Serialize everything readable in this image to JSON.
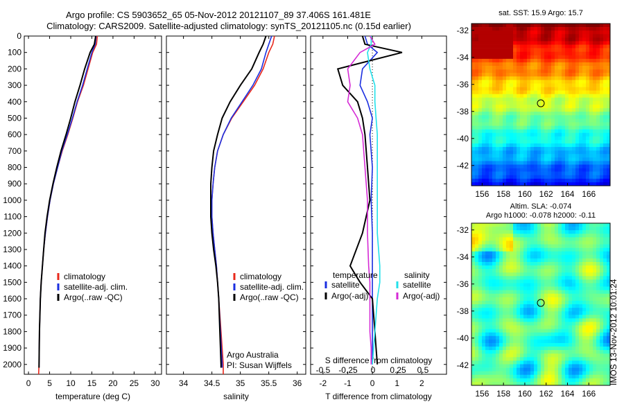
{
  "titles": {
    "line1": "Argo profile: CS 5903652_65 05-Nov-2012 20121107_89 37.406S 161.481E",
    "line2": "Climatology: CARS2009. Satellite-adjusted climatology: synTS_20121105.nc (0.15d earlier)"
  },
  "credits": {
    "org": "Argo Australia",
    "pi": "PI: Susan Wijffels"
  },
  "stamp": "IMOS 13-Nov-2012 10:01:24",
  "colors": {
    "climatology": "#e8271a",
    "satellite": "#1a2ee0",
    "argo": "#000000",
    "sat_salinity": "#22e0ea",
    "argo_salinity": "#d52ad5"
  },
  "chart_data": [
    {
      "type": "line",
      "xlabel": "temperature (deg C)",
      "ylabel": "",
      "xlim": [
        -1,
        31.5
      ],
      "ylim": [
        2060,
        0
      ],
      "xticks": [
        0,
        5,
        10,
        15,
        20,
        25,
        30
      ],
      "yticks": [
        0,
        100,
        200,
        300,
        400,
        500,
        600,
        700,
        800,
        900,
        1000,
        1100,
        1200,
        1300,
        1400,
        1500,
        1600,
        1700,
        1800,
        1900,
        2000
      ],
      "legend": [
        "climatology",
        "satellite-adj. clim.",
        "Argo(..raw -QC)"
      ],
      "series": [
        {
          "name": "climatology",
          "color": "#e8271a",
          "x": [
            16.3,
            16.1,
            15.2,
            14.1,
            13.0,
            11.6,
            10.5,
            9.3,
            8.0,
            6.9,
            5.9,
            5.1,
            4.5,
            4.0,
            3.6,
            3.3,
            3.0,
            2.8,
            2.6,
            2.5,
            2.4
          ],
          "y": [
            0,
            50,
            100,
            200,
            300,
            400,
            500,
            600,
            700,
            800,
            900,
            1000,
            1100,
            1200,
            1300,
            1400,
            1500,
            1600,
            1800,
            2000,
            2060
          ]
        },
        {
          "name": "satellite-adj. clim.",
          "color": "#1a2ee0",
          "x": [
            16.0,
            15.8,
            15.0,
            13.9,
            12.8,
            11.5,
            10.4,
            9.2,
            7.9,
            6.9,
            5.9,
            5.1,
            4.5,
            4.0,
            3.6,
            3.3,
            3.0,
            2.8,
            2.6,
            2.5,
            2.5
          ],
          "y": [
            0,
            50,
            100,
            200,
            300,
            400,
            500,
            600,
            700,
            800,
            900,
            1000,
            1100,
            1200,
            1300,
            1400,
            1500,
            1600,
            1800,
            2000,
            2020
          ]
        },
        {
          "name": "Argo(..raw -QC)",
          "color": "#000000",
          "x": [
            15.9,
            15.6,
            14.6,
            13.3,
            12.2,
            11.0,
            10.0,
            8.9,
            7.7,
            6.7,
            5.8,
            5.0,
            4.4,
            3.9,
            3.6,
            3.3,
            3.0,
            2.8,
            2.6,
            2.5,
            2.5
          ],
          "y": [
            0,
            50,
            100,
            200,
            300,
            400,
            500,
            600,
            700,
            800,
            900,
            1000,
            1100,
            1200,
            1300,
            1400,
            1500,
            1600,
            1800,
            2000,
            2020
          ]
        }
      ]
    },
    {
      "type": "line",
      "xlabel": "salinity",
      "ylabel": "",
      "xlim": [
        33.7,
        36.15
      ],
      "ylim": [
        2060,
        0
      ],
      "xticks": [
        34,
        34.5,
        35,
        35.5,
        36
      ],
      "legend": [
        "climatology",
        "satellite-adj. clim.",
        "Argo(..raw -QC)"
      ],
      "series": [
        {
          "name": "climatology",
          "color": "#e8271a",
          "x": [
            35.6,
            35.57,
            35.5,
            35.4,
            35.25,
            35.05,
            34.85,
            34.7,
            34.6,
            34.55,
            34.52,
            34.5,
            34.5,
            34.52,
            34.55,
            34.58,
            34.6,
            34.62,
            34.66,
            34.7,
            34.7
          ],
          "y": [
            0,
            50,
            100,
            200,
            300,
            400,
            500,
            600,
            700,
            800,
            900,
            1000,
            1100,
            1200,
            1300,
            1400,
            1500,
            1600,
            1800,
            2000,
            2060
          ]
        },
        {
          "name": "satellite-adj. clim.",
          "color": "#1a2ee0",
          "x": [
            35.55,
            35.5,
            35.45,
            35.37,
            35.22,
            35.03,
            34.84,
            34.7,
            34.6,
            34.55,
            34.52,
            34.5,
            34.5,
            34.52,
            34.55,
            34.58,
            34.6,
            34.62,
            34.65,
            34.68,
            34.68
          ],
          "y": [
            0,
            50,
            100,
            200,
            300,
            400,
            500,
            600,
            700,
            800,
            900,
            1000,
            1100,
            1200,
            1300,
            1400,
            1500,
            1600,
            1800,
            2000,
            2020
          ]
        },
        {
          "name": "Argo(..raw -QC)",
          "color": "#000000",
          "x": [
            35.45,
            35.4,
            35.33,
            35.2,
            35.0,
            34.82,
            34.68,
            34.6,
            34.53,
            34.5,
            34.48,
            34.48,
            34.48,
            34.5,
            34.53,
            34.57,
            34.6,
            34.62,
            34.64,
            34.66,
            34.66
          ],
          "y": [
            0,
            50,
            100,
            200,
            300,
            400,
            500,
            600,
            700,
            800,
            900,
            1000,
            1100,
            1200,
            1300,
            1400,
            1500,
            1600,
            1800,
            2000,
            2020
          ]
        }
      ]
    },
    {
      "type": "line",
      "xlabel": "T difference from climatology",
      "top_xlabel": "S difference from climatology",
      "xlim": [
        -2.5,
        3.0
      ],
      "ylim": [
        2060,
        0
      ],
      "xticks": [
        -2,
        -1,
        0,
        1,
        2
      ],
      "top_xticks": [
        "-0.5",
        "-0.25",
        "0",
        "0.25",
        "0.5"
      ],
      "legend_groups": {
        "temperature": [
          "satellite",
          "Argo(-adj)"
        ],
        "salinity": [
          "satellite",
          "Argo(-adj)"
        ]
      },
      "series": [
        {
          "name": "satellite",
          "group": "temperature",
          "color": "#1a2ee0",
          "x": [
            -0.3,
            -0.2,
            0.2,
            -0.4,
            -0.5,
            -0.2,
            0.0,
            -0.1,
            0.0,
            -0.05,
            0.0,
            0.0,
            0.0,
            0.0,
            0.0,
            0.0,
            0.0
          ],
          "y": [
            0,
            50,
            100,
            200,
            300,
            400,
            500,
            600,
            800,
            1000,
            1200,
            1400,
            1500,
            1600,
            1800,
            1900,
            2000
          ]
        },
        {
          "name": "Argo(-adj)",
          "group": "temperature",
          "color": "#000000",
          "x": [
            -0.4,
            -0.3,
            1.2,
            -1.4,
            -1.2,
            -0.6,
            -0.4,
            -0.3,
            -0.2,
            -0.1,
            -0.4,
            -0.9,
            -0.5,
            0.0,
            0.1,
            0.15,
            0.2
          ],
          "y": [
            0,
            50,
            100,
            200,
            300,
            400,
            500,
            600,
            800,
            1000,
            1200,
            1400,
            1500,
            1600,
            1800,
            1900,
            2000
          ]
        },
        {
          "name": "satellite",
          "group": "salinity",
          "color": "#22e0ea",
          "x": [
            -0.05,
            -0.05,
            -0.2,
            -0.1,
            0.1,
            0.1,
            0.15,
            0.2,
            0.2,
            0.2,
            0.2,
            0.3,
            0.3,
            0.2,
            0.1,
            0.05,
            0.0
          ],
          "y": [
            0,
            50,
            100,
            200,
            300,
            400,
            500,
            600,
            800,
            1000,
            1200,
            1400,
            1500,
            1600,
            1800,
            1900,
            2000
          ]
        },
        {
          "name": "Argo(-adj)",
          "group": "salinity",
          "color": "#d52ad5",
          "x": [
            -0.1,
            0.1,
            -0.5,
            -1.0,
            -0.9,
            -1.0,
            -0.6,
            -0.4,
            -0.3,
            -0.2,
            -0.2,
            -0.15,
            -0.1,
            -0.1,
            -0.1,
            -0.05,
            -0.05
          ],
          "y": [
            0,
            50,
            100,
            200,
            300,
            400,
            500,
            600,
            800,
            1000,
            1200,
            1400,
            1500,
            1600,
            1800,
            1900,
            2000
          ]
        }
      ]
    },
    {
      "type": "heatmap",
      "title": "sat. SST: 15.9 Argo: 15.7",
      "xlim": [
        155,
        168
      ],
      "ylim": [
        -43.5,
        -31.5
      ],
      "xticks": [
        156,
        158,
        160,
        162,
        164,
        166
      ],
      "yticks": [
        -32,
        -34,
        -36,
        -38,
        -40,
        -42
      ],
      "marker": {
        "lon": 161.5,
        "lat": -37.4
      }
    },
    {
      "type": "heatmap",
      "title_line1": "Altim. SLA: -0.074",
      "title_line2": "Argo h1000: -0.078 h2000: -0.11",
      "xlim": [
        155,
        168
      ],
      "ylim": [
        -43.5,
        -31.5
      ],
      "xticks": [
        156,
        158,
        160,
        162,
        164,
        166
      ],
      "yticks": [
        -32,
        -34,
        -36,
        -38,
        -40,
        -42
      ],
      "marker": {
        "lon": 161.5,
        "lat": -37.4
      }
    }
  ]
}
